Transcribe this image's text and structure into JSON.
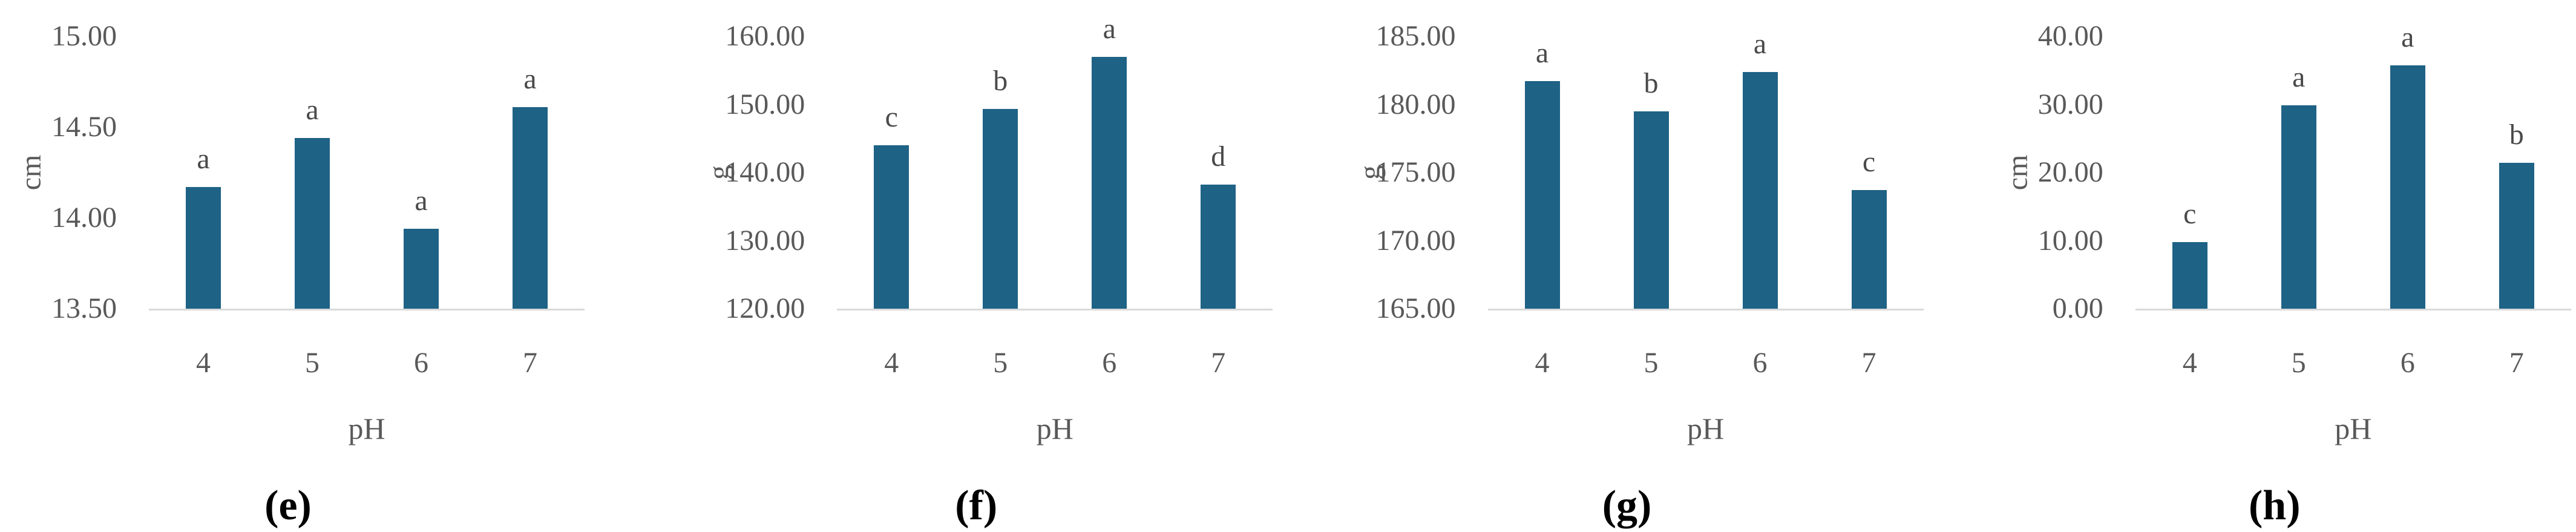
{
  "page": {
    "background": "#FFFFFF",
    "description": "Four-panel bar chart figure, panels (e) through (h), effect of pH on growth metrics"
  },
  "colors": {
    "bar_fill": "#1E6285",
    "axis_line": "#D9D9D9",
    "tick_text": "#595959",
    "bar_label_text": "#4A4A4A",
    "caption_text": "#000000"
  },
  "chart_data": [
    {
      "type": "bar",
      "caption": "(e)",
      "title": "",
      "xlabel": "pH",
      "ylabel": "cm",
      "categories": [
        "4",
        "5",
        "6",
        "7"
      ],
      "values": [
        14.17,
        14.44,
        13.94,
        14.61
      ],
      "bar_labels": [
        "a",
        "a",
        "a",
        "a"
      ],
      "ylim": [
        13.5,
        15.0
      ],
      "ytick_step": 0.5,
      "ytick_labels": [
        "15.00",
        "14.50",
        "14.00",
        "13.50"
      ],
      "grid": false,
      "legend": false
    },
    {
      "type": "bar",
      "caption": "(f)",
      "title": "",
      "xlabel": "pH",
      "ylabel": "g",
      "categories": [
        "4",
        "5",
        "6",
        "7"
      ],
      "values": [
        144.0,
        149.3,
        157.0,
        138.2
      ],
      "bar_labels": [
        "c",
        "b",
        "a",
        "d"
      ],
      "ylim": [
        120,
        160
      ],
      "ytick_step": 10,
      "ytick_labels": [
        "160.00",
        "150.00",
        "140.00",
        "130.00",
        "120.00"
      ],
      "grid": false,
      "legend": false
    },
    {
      "type": "bar",
      "caption": "(g)",
      "title": "",
      "xlabel": "pH",
      "ylabel": "g",
      "categories": [
        "4",
        "5",
        "6",
        "7"
      ],
      "values": [
        181.7,
        179.5,
        182.4,
        173.7
      ],
      "bar_labels": [
        "a",
        "b",
        "a",
        "c"
      ],
      "ylim": [
        165,
        185
      ],
      "ytick_step": 5,
      "ytick_labels": [
        "185.00",
        "180.00",
        "175.00",
        "170.00",
        "165.00"
      ],
      "grid": false,
      "legend": false
    },
    {
      "type": "bar",
      "caption": "(h)",
      "title": "",
      "xlabel": "pH",
      "ylabel": "cm",
      "categories": [
        "4",
        "5",
        "6",
        "7"
      ],
      "values": [
        9.8,
        29.9,
        35.7,
        21.4
      ],
      "bar_labels": [
        "c",
        "a",
        "a",
        "b"
      ],
      "ylim": [
        0,
        40
      ],
      "ytick_step": 10,
      "ytick_labels": [
        "40.00",
        "30.00",
        "20.00",
        "10.00",
        "0.00"
      ],
      "grid": false,
      "legend": false
    }
  ]
}
